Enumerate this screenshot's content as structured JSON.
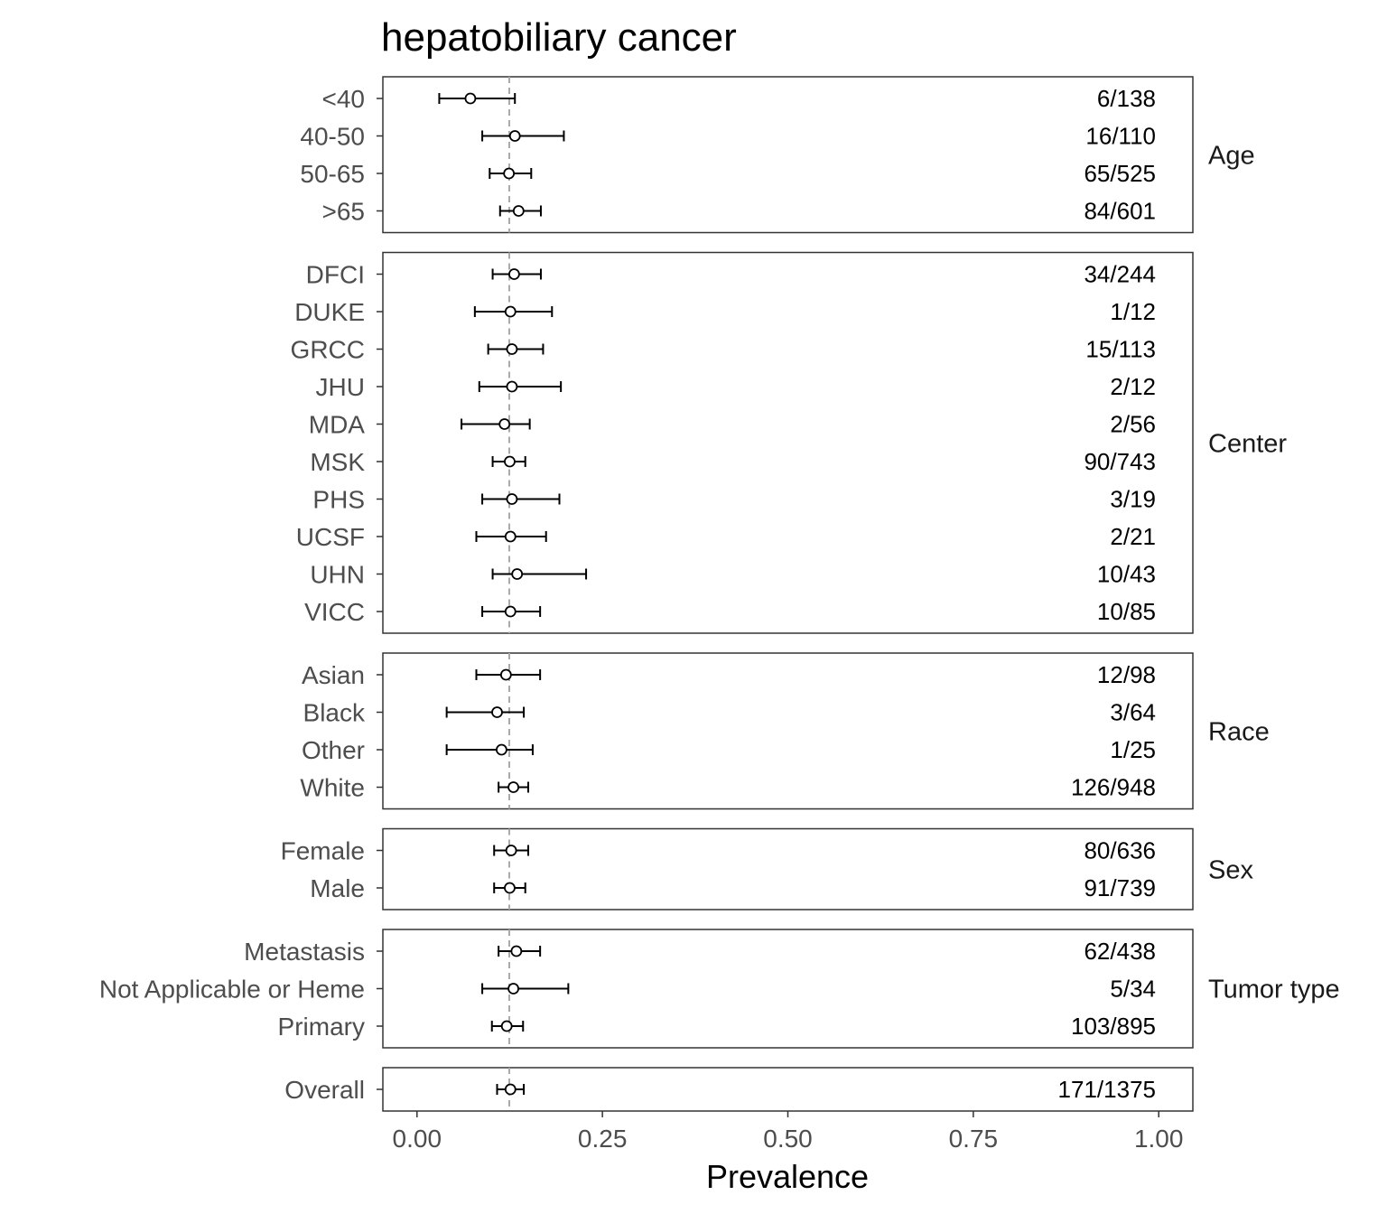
{
  "chart_data": {
    "type": "forest",
    "title": "hepatobiliary cancer",
    "xlabel": "Prevalence",
    "ylabel": "",
    "xlim": [
      -0.046,
      1.046
    ],
    "xticks": [
      0,
      0.25,
      0.5,
      0.75,
      1
    ],
    "xtick_labels": [
      "0.00",
      "0.25",
      "0.50",
      "0.75",
      "1.00"
    ],
    "reference_line": 0.1244,
    "grid": false,
    "panels": [
      {
        "name": "Age",
        "rows": [
          {
            "label": "<40",
            "estimate": 0.072,
            "lower": 0.03,
            "upper": 0.132,
            "count": "6/138"
          },
          {
            "label": "40-50",
            "estimate": 0.132,
            "lower": 0.088,
            "upper": 0.198,
            "count": "16/110"
          },
          {
            "label": "50-65",
            "estimate": 0.124,
            "lower": 0.098,
            "upper": 0.154,
            "count": "65/525"
          },
          {
            "label": ">65",
            "estimate": 0.137,
            "lower": 0.112,
            "upper": 0.167,
            "count": "84/601"
          }
        ]
      },
      {
        "name": "Center",
        "rows": [
          {
            "label": "DFCI",
            "estimate": 0.131,
            "lower": 0.102,
            "upper": 0.167,
            "count": "34/244"
          },
          {
            "label": "DUKE",
            "estimate": 0.126,
            "lower": 0.078,
            "upper": 0.182,
            "count": "1/12"
          },
          {
            "label": "GRCC",
            "estimate": 0.128,
            "lower": 0.096,
            "upper": 0.17,
            "count": "15/113"
          },
          {
            "label": "JHU",
            "estimate": 0.128,
            "lower": 0.084,
            "upper": 0.194,
            "count": "2/12"
          },
          {
            "label": "MDA",
            "estimate": 0.118,
            "lower": 0.06,
            "upper": 0.152,
            "count": "2/56"
          },
          {
            "label": "MSK",
            "estimate": 0.125,
            "lower": 0.102,
            "upper": 0.146,
            "count": "90/743"
          },
          {
            "label": "PHS",
            "estimate": 0.128,
            "lower": 0.088,
            "upper": 0.192,
            "count": "3/19"
          },
          {
            "label": "UCSF",
            "estimate": 0.126,
            "lower": 0.08,
            "upper": 0.174,
            "count": "2/21"
          },
          {
            "label": "UHN",
            "estimate": 0.135,
            "lower": 0.102,
            "upper": 0.228,
            "count": "10/43"
          },
          {
            "label": "VICC",
            "estimate": 0.126,
            "lower": 0.088,
            "upper": 0.166,
            "count": "10/85"
          }
        ]
      },
      {
        "name": "Race",
        "rows": [
          {
            "label": "Asian",
            "estimate": 0.12,
            "lower": 0.08,
            "upper": 0.166,
            "count": "12/98"
          },
          {
            "label": "Black",
            "estimate": 0.108,
            "lower": 0.04,
            "upper": 0.144,
            "count": "3/64"
          },
          {
            "label": "Other",
            "estimate": 0.114,
            "lower": 0.04,
            "upper": 0.156,
            "count": "1/25"
          },
          {
            "label": "White",
            "estimate": 0.13,
            "lower": 0.11,
            "upper": 0.15,
            "count": "126/948"
          }
        ]
      },
      {
        "name": "Sex",
        "rows": [
          {
            "label": "Female",
            "estimate": 0.127,
            "lower": 0.104,
            "upper": 0.15,
            "count": "80/636"
          },
          {
            "label": "Male",
            "estimate": 0.125,
            "lower": 0.104,
            "upper": 0.146,
            "count": "91/739"
          }
        ]
      },
      {
        "name": "Tumor type",
        "rows": [
          {
            "label": "Metastasis",
            "estimate": 0.134,
            "lower": 0.11,
            "upper": 0.166,
            "count": "62/438"
          },
          {
            "label": "Not Applicable or Heme",
            "estimate": 0.13,
            "lower": 0.088,
            "upper": 0.204,
            "count": "5/34"
          },
          {
            "label": "Primary",
            "estimate": 0.121,
            "lower": 0.101,
            "upper": 0.143,
            "count": "103/895"
          }
        ]
      },
      {
        "name": "",
        "rows": [
          {
            "label": "Overall",
            "estimate": 0.126,
            "lower": 0.108,
            "upper": 0.144,
            "count": "171/1375"
          }
        ]
      }
    ]
  }
}
